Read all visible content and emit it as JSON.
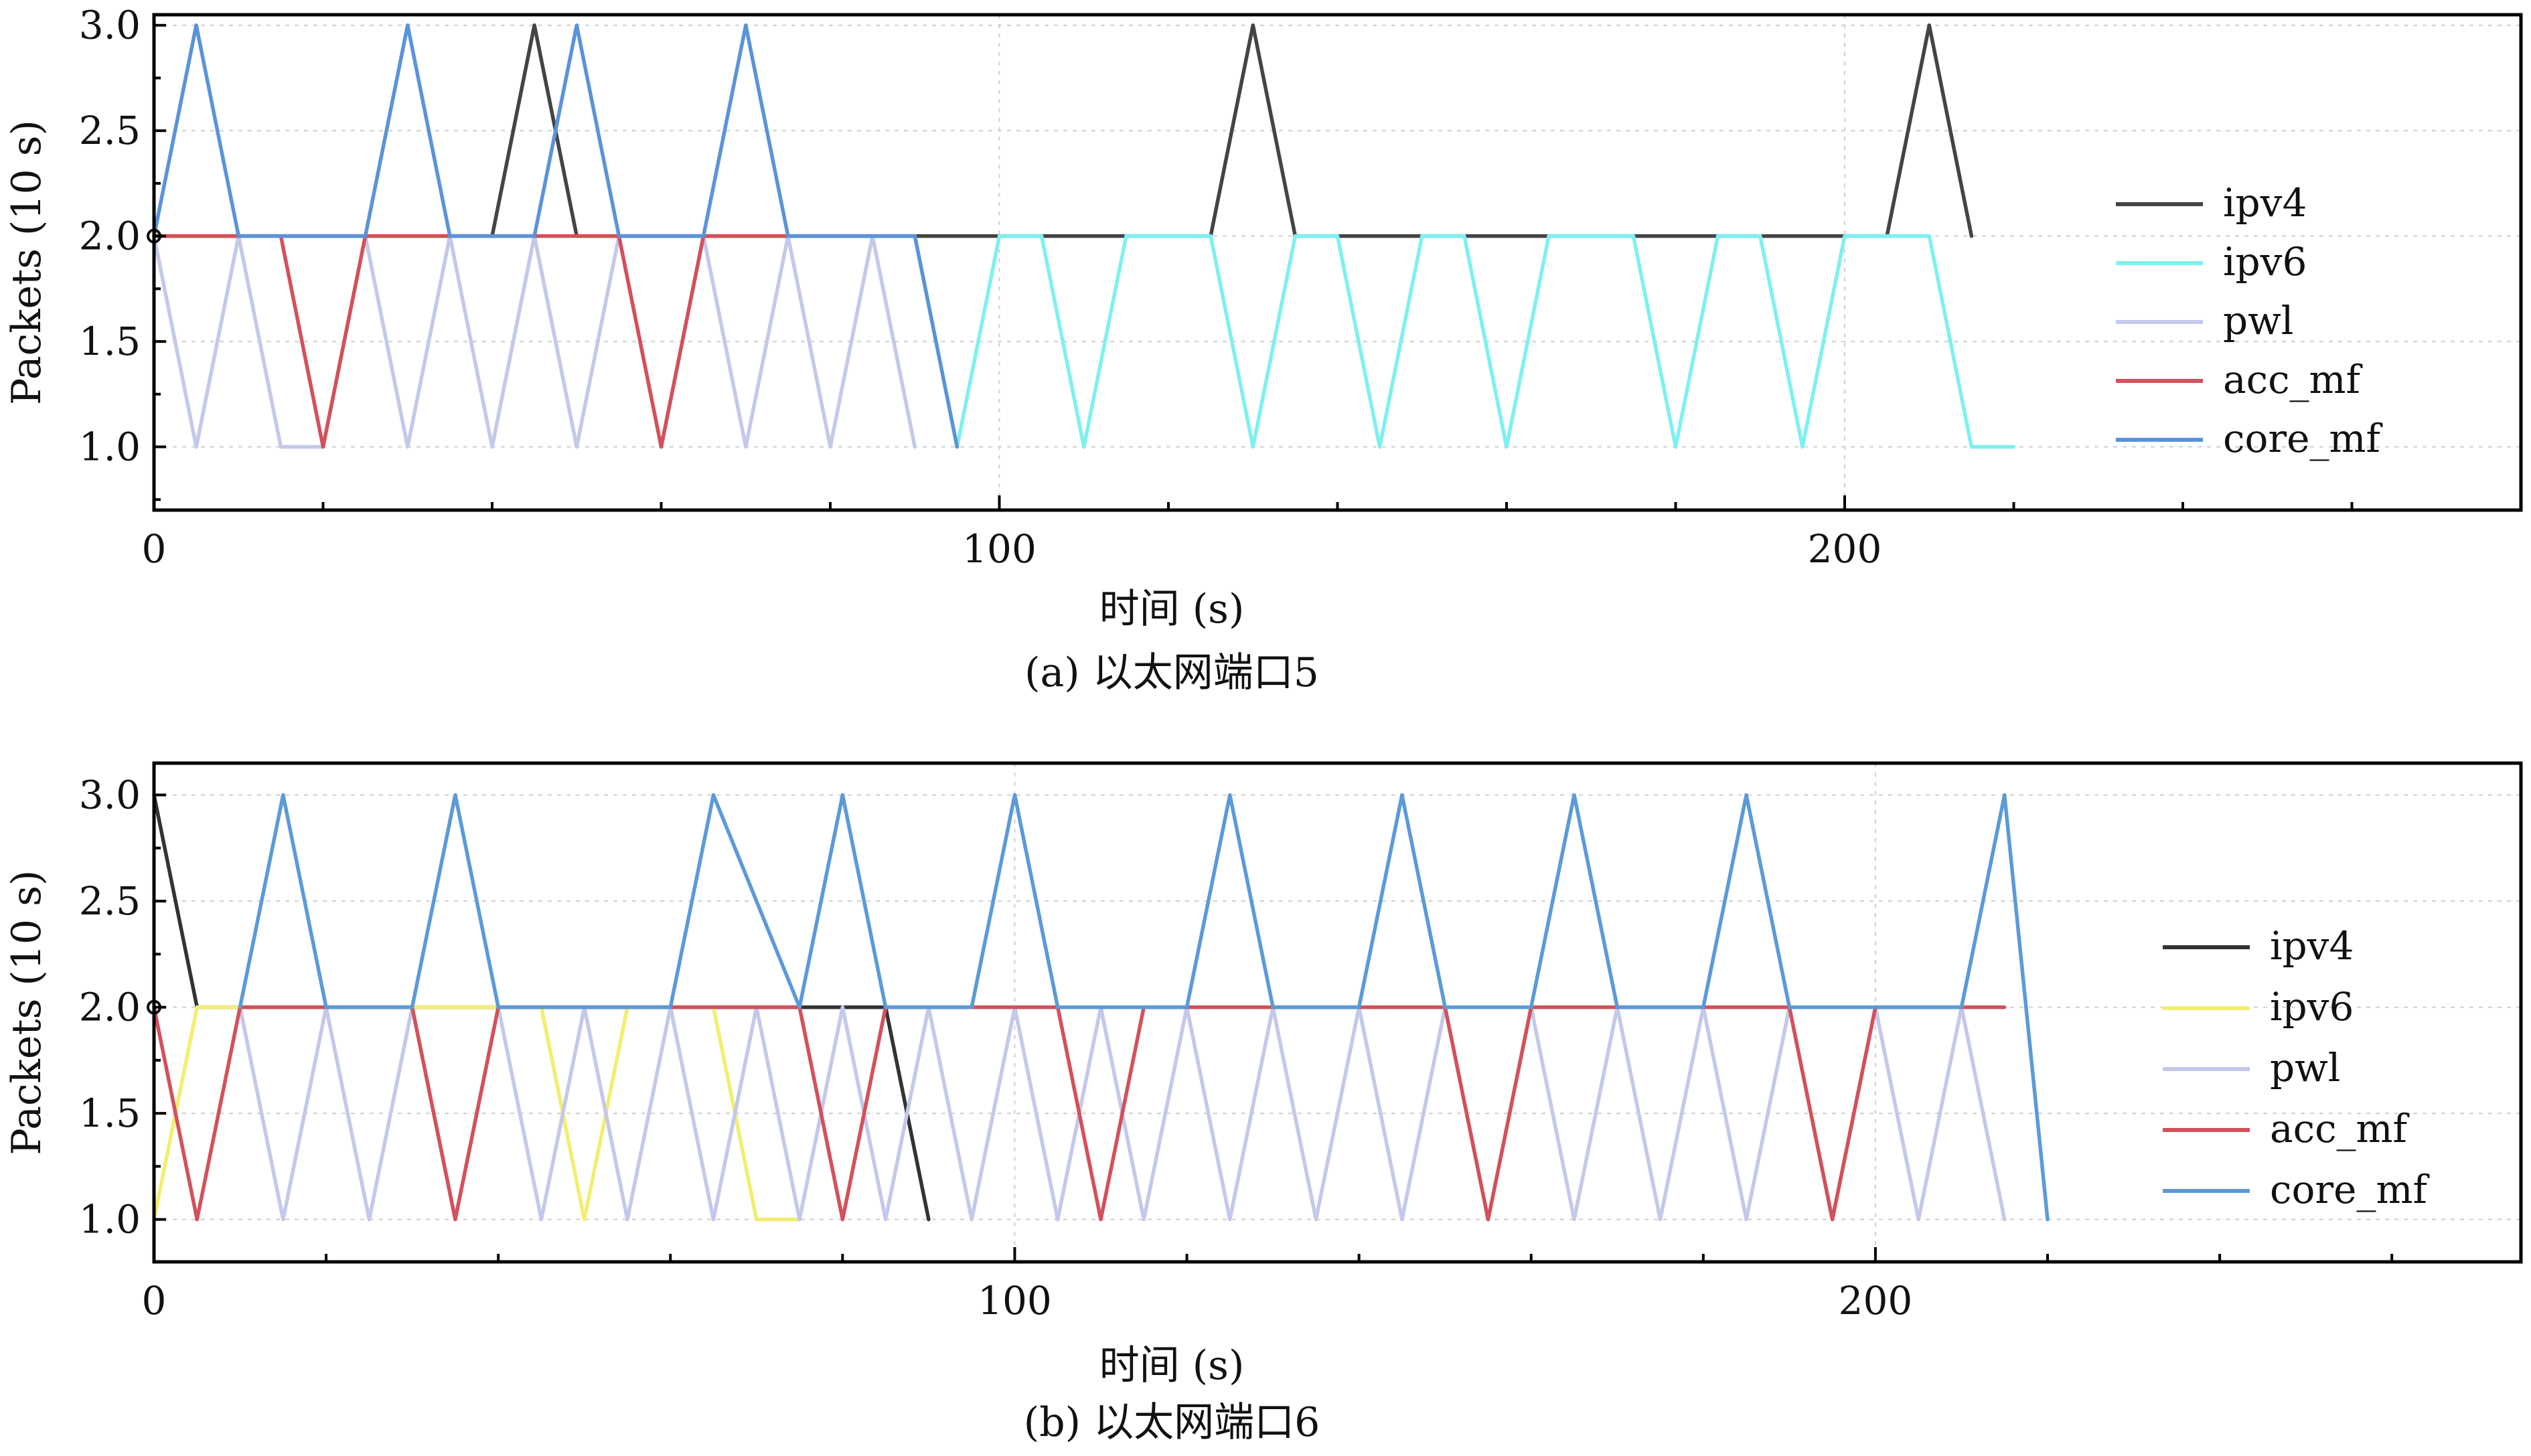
{
  "chart_data": [
    {
      "type": "line",
      "panel": "a",
      "caption": "(a) 以太网端口5",
      "xlabel": "时间 (s)",
      "ylabel": "Packets (10 s)",
      "xlim": [
        0,
        280
      ],
      "ylim": [
        0.7,
        3.05
      ],
      "xticks": [
        0,
        100,
        200
      ],
      "xtick_labels": [
        "0",
        "100",
        "200"
      ],
      "yticks": [
        1.0,
        1.5,
        2.0,
        2.5,
        3.0
      ],
      "ytick_labels": [
        "1.0",
        "1.5",
        "2.0",
        "2.5",
        "3.0"
      ],
      "grid": true,
      "legend_position": "center-right",
      "series": [
        {
          "name": "ipv4",
          "color": "#444444",
          "x": [
            0,
            40,
            45,
            50,
            90,
            125,
            130,
            135,
            205,
            210,
            215
          ],
          "y": [
            2,
            2,
            3,
            2,
            2,
            2,
            3,
            2,
            2,
            3,
            2
          ]
        },
        {
          "name": "ipv6",
          "color": "#7ef0f0",
          "x": [
            90,
            95,
            100,
            105,
            110,
            115,
            125,
            130,
            135,
            140,
            145,
            150,
            155,
            160,
            165,
            175,
            180,
            185,
            190,
            195,
            200,
            210,
            215,
            220
          ],
          "y": [
            2,
            1,
            2,
            2,
            1,
            2,
            2,
            1,
            2,
            2,
            1,
            2,
            2,
            1,
            2,
            2,
            1,
            2,
            2,
            1,
            2,
            2,
            1,
            1
          ]
        },
        {
          "name": "pwl",
          "color": "#c4c8ea",
          "x": [
            0,
            5,
            10,
            15,
            20,
            25,
            30,
            35,
            40,
            45,
            50,
            55,
            60,
            65,
            70,
            75,
            80,
            85,
            90
          ],
          "y": [
            2,
            1,
            2,
            1,
            1,
            2,
            1,
            2,
            1,
            2,
            1,
            2,
            1,
            2,
            1,
            2,
            1,
            2,
            1
          ]
        },
        {
          "name": "acc_mf",
          "color": "#d4505a",
          "x": [
            0,
            15,
            20,
            25,
            55,
            60,
            65,
            75
          ],
          "y": [
            2,
            2,
            1,
            2,
            2,
            1,
            2,
            2
          ]
        },
        {
          "name": "core_mf",
          "color": "#5b93d8",
          "x": [
            0,
            5,
            10,
            25,
            30,
            35,
            45,
            50,
            55,
            65,
            70,
            75,
            90,
            95
          ],
          "y": [
            2,
            3,
            2,
            2,
            3,
            2,
            2,
            3,
            2,
            2,
            3,
            2,
            2,
            1
          ]
        }
      ]
    },
    {
      "type": "line",
      "panel": "b",
      "caption": "(b) 以太网端口6",
      "xlabel": "时间 (s)",
      "ylabel": "Packets (10 s)",
      "xlim": [
        0,
        275
      ],
      "ylim": [
        0.8,
        3.15
      ],
      "xticks": [
        0,
        100,
        200
      ],
      "xtick_labels": [
        "0",
        "100",
        "200"
      ],
      "yticks": [
        1.0,
        1.5,
        2.0,
        2.5,
        3.0
      ],
      "ytick_labels": [
        "1.0",
        "1.5",
        "2.0",
        "2.5",
        "3.0"
      ],
      "grid": true,
      "legend_position": "center-right",
      "series": [
        {
          "name": "ipv4",
          "color": "#333333",
          "x": [
            0,
            5,
            80,
            85,
            90
          ],
          "y": [
            3,
            2,
            2,
            2,
            1
          ]
        },
        {
          "name": "ipv6",
          "color": "#f3ee70",
          "x": [
            0,
            5,
            45,
            50,
            55,
            65,
            70,
            75
          ],
          "y": [
            1,
            2,
            2,
            1,
            2,
            2,
            1,
            1
          ]
        },
        {
          "name": "pwl",
          "color": "#c4c8ea",
          "x": [
            10,
            15,
            20,
            25,
            30,
            35,
            40,
            45,
            50,
            55,
            60,
            65,
            70,
            75,
            80,
            85,
            90,
            95,
            100,
            105,
            110,
            115,
            120,
            125,
            130,
            135,
            140,
            145,
            150,
            155,
            160,
            165,
            170,
            175,
            180,
            185,
            190,
            195,
            200,
            205,
            210,
            215
          ],
          "y": [
            2,
            1,
            2,
            1,
            2,
            1,
            2,
            1,
            2,
            1,
            2,
            1,
            2,
            1,
            2,
            1,
            2,
            1,
            2,
            1,
            2,
            1,
            2,
            1,
            2,
            1,
            2,
            1,
            2,
            1,
            2,
            1,
            2,
            1,
            2,
            1,
            2,
            1,
            2,
            1,
            2,
            1
          ]
        },
        {
          "name": "acc_mf",
          "color": "#d4505a",
          "x": [
            0,
            5,
            10,
            30,
            35,
            40,
            75,
            80,
            85,
            105,
            110,
            115,
            120,
            150,
            155,
            160,
            165,
            190,
            195,
            200,
            205,
            215
          ],
          "y": [
            2,
            1,
            2,
            2,
            1,
            2,
            2,
            1,
            2,
            2,
            1,
            2,
            2,
            2,
            1,
            2,
            2,
            2,
            1,
            2,
            2,
            2
          ]
        },
        {
          "name": "core_mf",
          "color": "#5b9ad8",
          "x": [
            10,
            15,
            20,
            30,
            35,
            40,
            60,
            65,
            75,
            80,
            85,
            95,
            100,
            105,
            120,
            125,
            130,
            140,
            145,
            150,
            160,
            165,
            170,
            180,
            185,
            190,
            200,
            210,
            215,
            220
          ],
          "y": [
            2,
            3,
            2,
            2,
            3,
            2,
            2,
            3,
            2,
            3,
            2,
            2,
            3,
            2,
            2,
            3,
            2,
            2,
            3,
            2,
            2,
            3,
            2,
            2,
            3,
            2,
            2,
            2,
            3,
            1
          ]
        }
      ]
    }
  ]
}
